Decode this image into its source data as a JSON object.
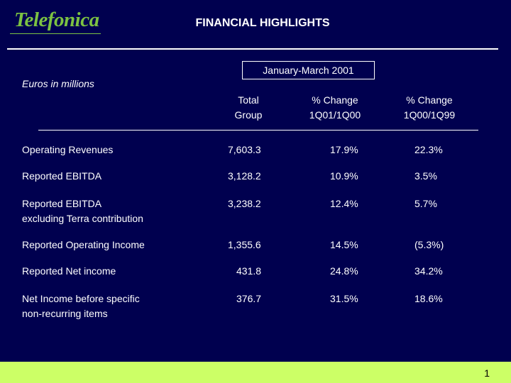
{
  "header": {
    "logo_text": "Telefonica",
    "title": "FINANCIAL HIGHLIGHTS"
  },
  "period": "January-March 2001",
  "units": "Euros in millions",
  "columns": [
    {
      "line1": "Total",
      "line2": "Group"
    },
    {
      "line1": "% Change",
      "line2": "1Q01/1Q00"
    },
    {
      "line1": "% Change",
      "line2": "1Q00/1Q99"
    }
  ],
  "rows": [
    {
      "label1": "Operating Revenues",
      "label2": "",
      "total": "7,603.3",
      "ch1": "17.9%",
      "ch2": "22.3%"
    },
    {
      "label1": "Reported EBITDA",
      "label2": "",
      "total": "3,128.2",
      "ch1": "10.9%",
      "ch2": "3.5%"
    },
    {
      "label1": "Reported EBITDA",
      "label2": "excluding Terra contribution",
      "total": "3,238.2",
      "ch1": "12.4%",
      "ch2": "5.7%"
    },
    {
      "label1": "Reported Operating Income",
      "label2": "",
      "total": "1,355.6",
      "ch1": "14.5%",
      "ch2": "(5.3%)"
    },
    {
      "label1": "Reported Net income",
      "label2": "",
      "total": "431.8",
      "ch1": "24.8%",
      "ch2": "34.2%"
    },
    {
      "label1": "Net Income before specific",
      "label2": "non-recurring items",
      "total": "376.7",
      "ch1": "31.5%",
      "ch2": "18.6%"
    }
  ],
  "footer": {
    "page_number": "1"
  },
  "colors": {
    "background": "#00004f",
    "brand_green": "#7cc242",
    "footer_band": "#ccff66"
  }
}
